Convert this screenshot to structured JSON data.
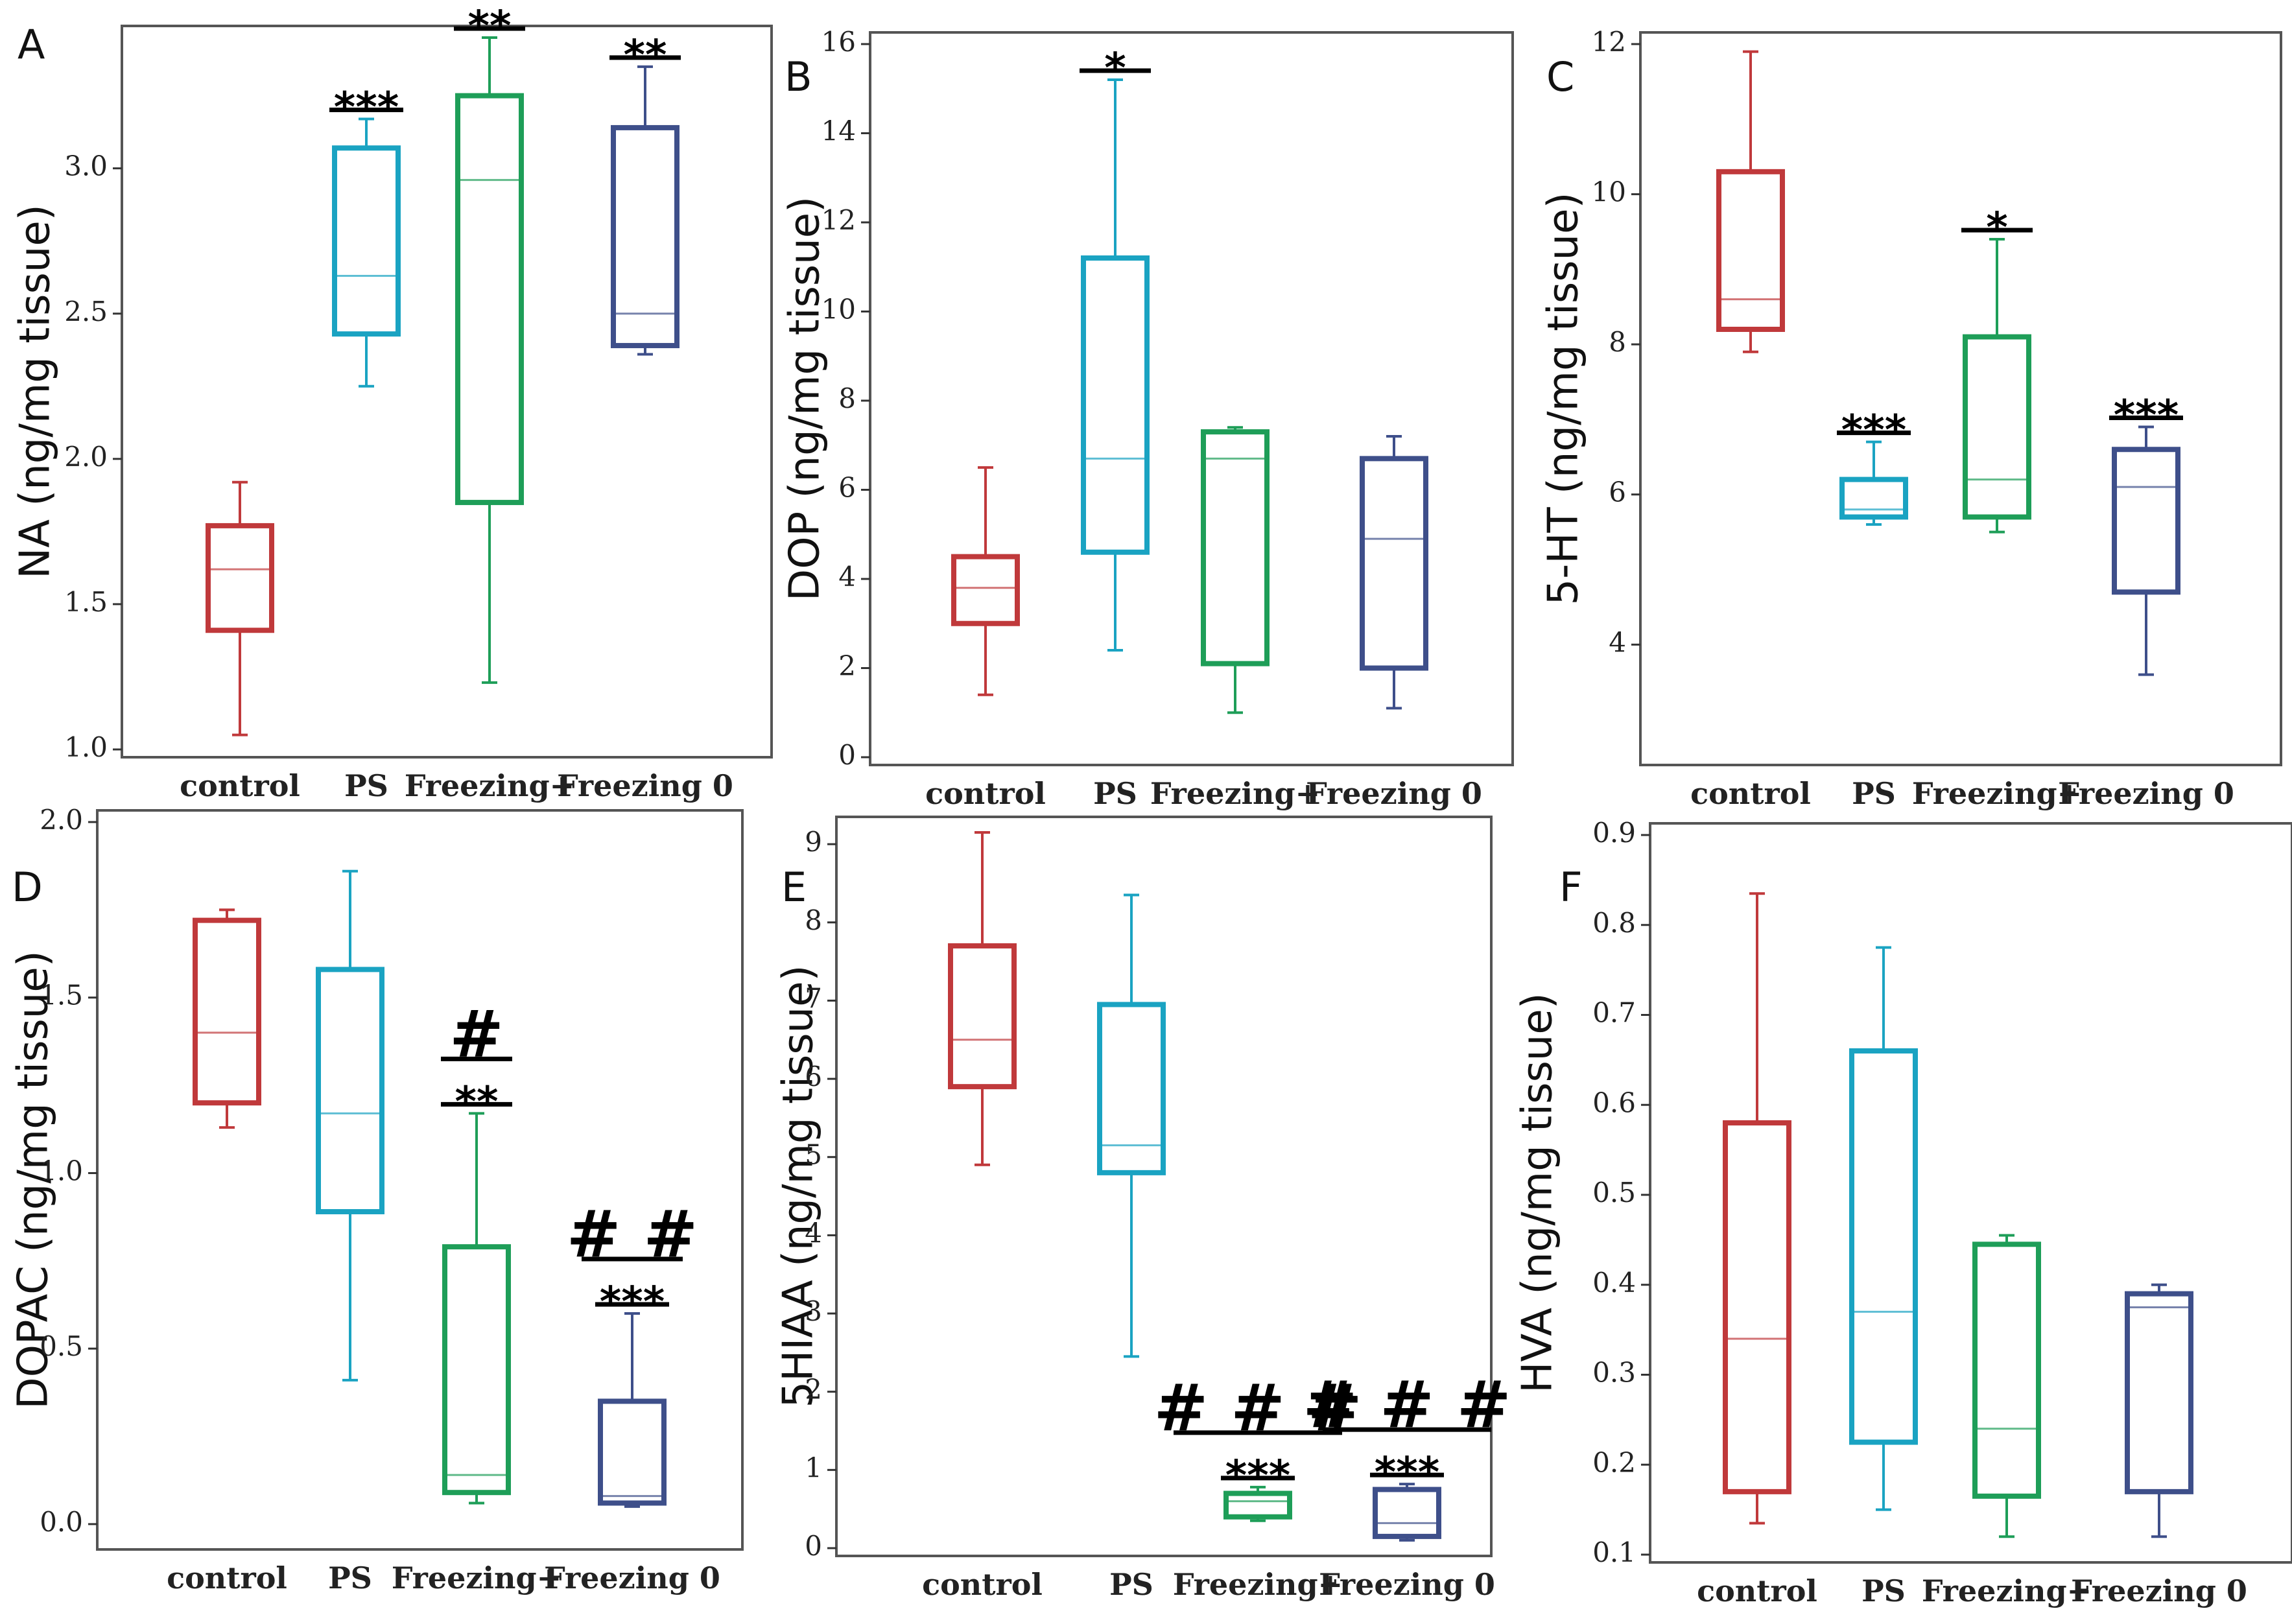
{
  "categories": [
    "control",
    "PS",
    "Freezing+",
    "Freezing 0"
  ],
  "colors": {
    "control": "#c0393b",
    "PS": "#1aa3c2",
    "Freezing+": "#1e9e58",
    "Freezing 0": "#3e4f8a"
  },
  "chart_data": [
    {
      "type": "box",
      "panel": "A",
      "ylabel": "NA (ng/mg tissue)",
      "ylim": [
        1.0,
        3.45
      ],
      "yticks": [
        "1.0",
        "1.5",
        "2.0",
        "2.5",
        "3.0"
      ],
      "series": [
        {
          "category": "control",
          "min": 1.05,
          "q1": 1.41,
          "median": 1.62,
          "q3": 1.77,
          "max": 1.92,
          "sig": []
        },
        {
          "category": "PS",
          "min": 2.25,
          "q1": 2.43,
          "median": 2.63,
          "q3": 3.07,
          "max": 3.17,
          "sig": [
            "***"
          ]
        },
        {
          "category": "Freezing+",
          "min": 1.23,
          "q1": 1.85,
          "median": 2.96,
          "q3": 3.25,
          "max": 3.45,
          "sig": [
            "**"
          ]
        },
        {
          "category": "Freezing 0",
          "min": 2.36,
          "q1": 2.39,
          "median": 2.5,
          "q3": 3.14,
          "max": 3.35,
          "sig": [
            "**"
          ]
        }
      ]
    },
    {
      "type": "box",
      "panel": "B",
      "ylabel": "DOP (ng/mg tissue)",
      "ylim": [
        0,
        16
      ],
      "yticks": [
        "0",
        "2",
        "4",
        "6",
        "8",
        "10",
        "12",
        "14",
        "16"
      ],
      "series": [
        {
          "category": "control",
          "min": 1.4,
          "q1": 3.0,
          "median": 3.8,
          "q3": 4.5,
          "max": 6.5,
          "sig": []
        },
        {
          "category": "PS",
          "min": 2.4,
          "q1": 4.6,
          "median": 6.7,
          "q3": 11.2,
          "max": 15.2,
          "sig": [
            "*"
          ]
        },
        {
          "category": "Freezing+",
          "min": 1.0,
          "q1": 2.1,
          "median": 6.7,
          "q3": 7.3,
          "max": 7.4,
          "sig": []
        },
        {
          "category": "Freezing 0",
          "min": 1.1,
          "q1": 2.0,
          "median": 4.9,
          "q3": 6.7,
          "max": 7.2,
          "sig": []
        }
      ]
    },
    {
      "type": "box",
      "panel": "C",
      "ylabel": "5-HT (ng/mg tissue)",
      "ylim": [
        2.5,
        12
      ],
      "yticks": [
        "4",
        "6",
        "8",
        "10",
        "12"
      ],
      "series": [
        {
          "category": "control",
          "min": 7.9,
          "q1": 8.2,
          "median": 8.6,
          "q3": 10.3,
          "max": 11.9,
          "sig": []
        },
        {
          "category": "PS",
          "min": 5.6,
          "q1": 5.7,
          "median": 5.8,
          "q3": 6.2,
          "max": 6.7,
          "sig": [
            "***"
          ]
        },
        {
          "category": "Freezing+",
          "min": 5.5,
          "q1": 5.7,
          "median": 6.2,
          "q3": 8.1,
          "max": 9.4,
          "sig": [
            "*"
          ]
        },
        {
          "category": "Freezing 0",
          "min": 3.6,
          "q1": 4.7,
          "median": 6.1,
          "q3": 6.6,
          "max": 6.9,
          "sig": [
            "***"
          ]
        }
      ]
    },
    {
      "type": "box",
      "panel": "D",
      "ylabel": "DOPAC (ng/mg tissue)",
      "ylim": [
        -0.05,
        2.0
      ],
      "yticks": [
        "0.0",
        "0.5",
        "1.0",
        "1.5",
        "2.0"
      ],
      "series": [
        {
          "category": "control",
          "min": 1.13,
          "q1": 1.2,
          "median": 1.4,
          "q3": 1.72,
          "max": 1.75,
          "sig": []
        },
        {
          "category": "PS",
          "min": 0.41,
          "q1": 0.89,
          "median": 1.17,
          "q3": 1.58,
          "max": 1.86,
          "sig": []
        },
        {
          "category": "Freezing+",
          "min": 0.06,
          "q1": 0.09,
          "median": 0.14,
          "q3": 0.79,
          "max": 1.17,
          "sig": [
            "**",
            "#"
          ]
        },
        {
          "category": "Freezing 0",
          "min": 0.05,
          "q1": 0.06,
          "median": 0.08,
          "q3": 0.35,
          "max": 0.6,
          "sig": [
            "***",
            "# #"
          ]
        }
      ]
    },
    {
      "type": "box",
      "panel": "E",
      "ylabel": "5HIAA (ng/mg tissue)",
      "ylim": [
        0,
        9.2
      ],
      "yticks": [
        "0",
        "1",
        "2",
        "3",
        "4",
        "5",
        "6",
        "7",
        "8",
        "9"
      ],
      "series": [
        {
          "category": "control",
          "min": 4.9,
          "q1": 5.9,
          "median": 6.5,
          "q3": 7.7,
          "max": 9.15,
          "sig": []
        },
        {
          "category": "PS",
          "min": 2.45,
          "q1": 4.8,
          "median": 5.15,
          "q3": 6.95,
          "max": 8.35,
          "sig": []
        },
        {
          "category": "Freezing+",
          "min": 0.35,
          "q1": 0.4,
          "median": 0.6,
          "q3": 0.7,
          "max": 0.78,
          "sig": [
            "***",
            "# # #"
          ]
        },
        {
          "category": "Freezing 0",
          "min": 0.1,
          "q1": 0.15,
          "median": 0.32,
          "q3": 0.75,
          "max": 0.82,
          "sig": [
            "***",
            "# # #"
          ]
        }
      ]
    },
    {
      "type": "box",
      "panel": "F",
      "ylabel": "HVA (ng/mg tissue)",
      "ylim": [
        0.1,
        0.9
      ],
      "yticks": [
        "0.1",
        "0.2",
        "0.3",
        "0.4",
        "0.5",
        "0.6",
        "0.7",
        "0.8",
        "0.9"
      ],
      "series": [
        {
          "category": "control",
          "min": 0.135,
          "q1": 0.17,
          "median": 0.34,
          "q3": 0.58,
          "max": 0.835,
          "sig": []
        },
        {
          "category": "PS",
          "min": 0.15,
          "q1": 0.225,
          "median": 0.37,
          "q3": 0.66,
          "max": 0.775,
          "sig": []
        },
        {
          "category": "Freezing+",
          "min": 0.12,
          "q1": 0.165,
          "median": 0.24,
          "q3": 0.445,
          "max": 0.455,
          "sig": []
        },
        {
          "category": "Freezing 0",
          "min": 0.12,
          "q1": 0.17,
          "median": 0.375,
          "q3": 0.39,
          "max": 0.4,
          "sig": []
        }
      ]
    }
  ]
}
